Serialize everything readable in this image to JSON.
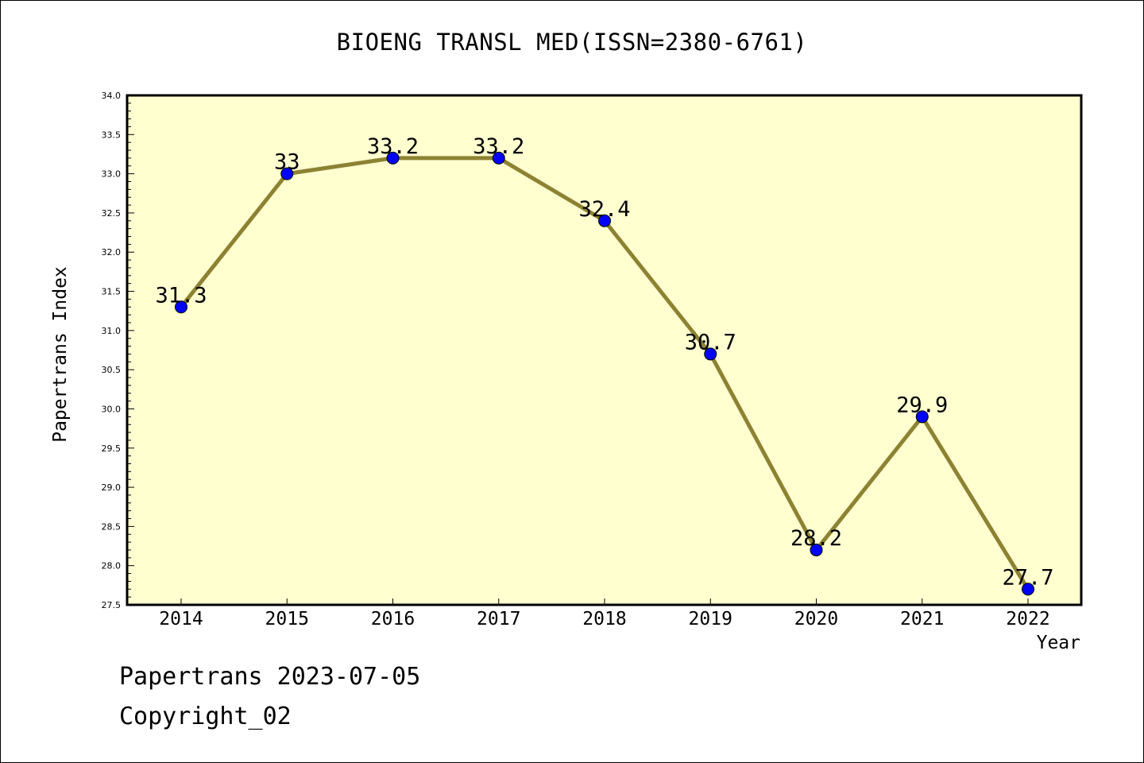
{
  "chart_data": {
    "type": "line",
    "title": "BIOENG TRANSL MED(ISSN=2380-6761)",
    "xlabel": "Year",
    "ylabel": "Papertrans Index",
    "x": [
      "2014",
      "2015",
      "2016",
      "2017",
      "2018",
      "2019",
      "2020",
      "2021",
      "2022"
    ],
    "series": [
      {
        "values": [
          31.3,
          33,
          33.2,
          33.2,
          32.4,
          30.7,
          28.2,
          29.9,
          27.7
        ],
        "labels": [
          "31.3",
          "33",
          "33.2",
          "33.2",
          "32.4",
          "30.7",
          "28.2",
          "29.9",
          "27.7"
        ]
      }
    ],
    "ylim": [
      27.5,
      34.0
    ],
    "yticks": [
      "27.5",
      "28.0",
      "28.5",
      "29.0",
      "29.5",
      "30.0",
      "30.5",
      "31.0",
      "31.5",
      "32.0",
      "32.5",
      "33.0",
      "33.5",
      "34.0"
    ],
    "grid": false,
    "colors": {
      "plot_background": "#ffffd0",
      "line": "#8c8232",
      "marker": "#0000ff"
    }
  },
  "footer": {
    "line1": "Papertrans 2023-07-05",
    "line2": "Copyright_02"
  }
}
